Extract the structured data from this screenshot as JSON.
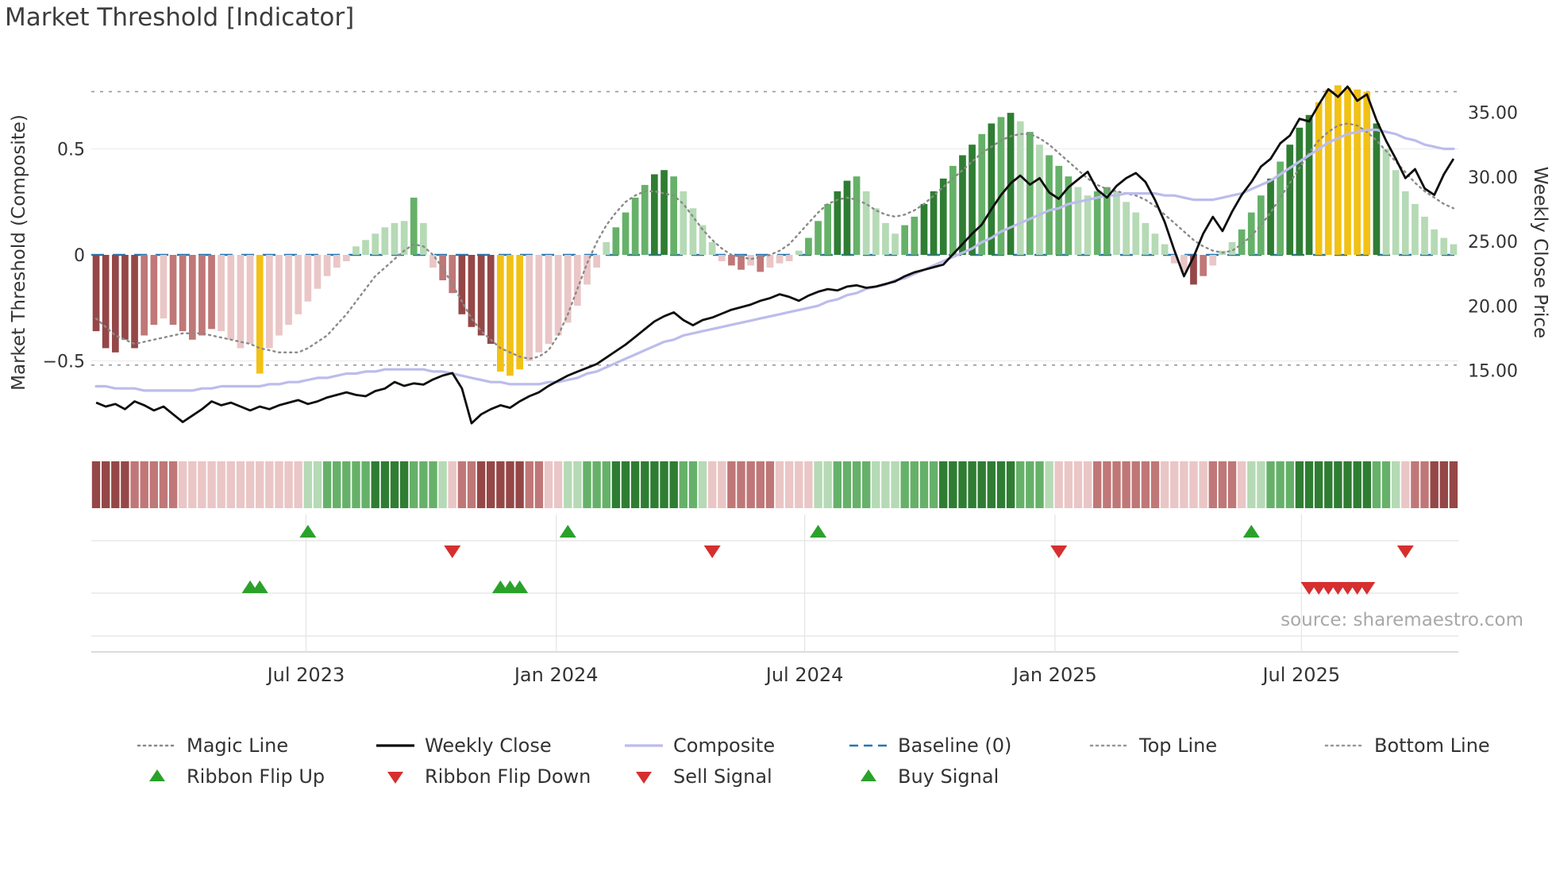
{
  "meta": {
    "title": "Market Threshold [Indicator]",
    "source": "source: sharemaestro.com"
  },
  "colors": {
    "bar_shades": {
      "r1": "#eac6c6",
      "r2": "#c07777",
      "r3": "#954747",
      "g1": "#b5dab5",
      "g2": "#66b169",
      "g3": "#2f7d33",
      "au": "#f2c115"
    },
    "magic": "#8a8a8a",
    "weekly_close": "#0d0d0d",
    "composite": "#bcbcec",
    "baseline": "#2277b4",
    "ref_line": "#999999",
    "flip_up": "#2aa22a",
    "flip_down": "#d62f2f",
    "buy": "#2aa22a",
    "sell": "#d62f2f"
  },
  "chart_data": {
    "type": "combo",
    "title": "Market Threshold [Indicator]",
    "x_unit": "weekly",
    "n_points": 142,
    "legend_position": "bottom",
    "x_ticks": [
      {
        "pos": 21.8,
        "label": "Jul 2023"
      },
      {
        "pos": 47.8,
        "label": "Jan 2024"
      },
      {
        "pos": 73.6,
        "label": "Jul 2024"
      },
      {
        "pos": 99.6,
        "label": "Jan 2025"
      },
      {
        "pos": 125.2,
        "label": "Jul 2025"
      }
    ],
    "left_axis": {
      "label": "Market Threshold (Composite)",
      "range": [
        -0.9,
        0.9
      ],
      "ticks": [
        {
          "v": 0.5,
          "t": "0.5"
        },
        {
          "v": 0.0,
          "t": "0"
        },
        {
          "v": -0.5,
          "t": "−0.5"
        }
      ]
    },
    "right_axis": {
      "label": "Weekly Close Price",
      "range": [
        9.0,
        38.5
      ],
      "ticks": [
        {
          "v": 35,
          "t": "35.00"
        },
        {
          "v": 30,
          "t": "30.00"
        },
        {
          "v": 25,
          "t": "25.00"
        },
        {
          "v": 20,
          "t": "20.00"
        },
        {
          "v": 15,
          "t": "15.00"
        }
      ]
    },
    "reference_lines": {
      "baseline": {
        "value": 0,
        "label": "Baseline (0)"
      },
      "top_line": {
        "value": 0.77,
        "label": "Top Line"
      },
      "bottom_line": {
        "value": -0.52,
        "label": "Bottom Line"
      }
    },
    "bars": {
      "name": "Market Threshold histogram",
      "values": [
        -0.36,
        -0.44,
        -0.46,
        -0.4,
        -0.44,
        -0.38,
        -0.33,
        -0.3,
        -0.33,
        -0.36,
        -0.4,
        -0.38,
        -0.35,
        -0.36,
        -0.4,
        -0.44,
        -0.42,
        -0.56,
        -0.44,
        -0.38,
        -0.33,
        -0.28,
        -0.22,
        -0.16,
        -0.1,
        -0.06,
        -0.03,
        0.04,
        0.07,
        0.1,
        0.13,
        0.15,
        0.16,
        0.27,
        0.15,
        -0.06,
        -0.12,
        -0.18,
        -0.28,
        -0.34,
        -0.38,
        -0.42,
        -0.55,
        -0.57,
        -0.54,
        -0.5,
        -0.46,
        -0.42,
        -0.38,
        -0.32,
        -0.24,
        -0.14,
        -0.06,
        0.06,
        0.13,
        0.2,
        0.27,
        0.33,
        0.38,
        0.4,
        0.37,
        0.3,
        0.22,
        0.14,
        0.06,
        -0.03,
        -0.05,
        -0.07,
        -0.05,
        -0.08,
        -0.06,
        -0.04,
        -0.03,
        0.02,
        0.08,
        0.16,
        0.24,
        0.3,
        0.35,
        0.37,
        0.3,
        0.22,
        0.15,
        0.1,
        0.14,
        0.18,
        0.24,
        0.3,
        0.36,
        0.42,
        0.47,
        0.52,
        0.57,
        0.62,
        0.65,
        0.67,
        0.63,
        0.58,
        0.52,
        0.47,
        0.42,
        0.37,
        0.32,
        0.28,
        0.3,
        0.32,
        0.3,
        0.25,
        0.2,
        0.15,
        0.1,
        0.05,
        -0.04,
        -0.08,
        -0.14,
        -0.1,
        -0.05,
        0.02,
        0.06,
        0.12,
        0.2,
        0.28,
        0.36,
        0.44,
        0.52,
        0.6,
        0.66,
        0.72,
        0.78,
        0.8,
        0.79,
        0.78,
        0.77,
        0.62,
        0.5,
        0.4,
        0.3,
        0.24,
        0.18,
        0.12,
        0.08,
        0.05
      ],
      "shades": [
        "r3",
        "r3",
        "r3",
        "r3",
        "r3",
        "r2",
        "r2",
        "r1",
        "r2",
        "r2",
        "r2",
        "r2",
        "r2",
        "r1",
        "r1",
        "r1",
        "r1",
        "au",
        "r1",
        "r1",
        "r1",
        "r1",
        "r1",
        "r1",
        "r1",
        "r1",
        "r1",
        "g1",
        "g1",
        "g1",
        "g1",
        "g1",
        "g1",
        "g2",
        "g1",
        "r1",
        "r2",
        "r2",
        "r3",
        "r3",
        "r3",
        "r3",
        "au",
        "au",
        "au",
        "r1",
        "r1",
        "r1",
        "r1",
        "r1",
        "r1",
        "r1",
        "r1",
        "g1",
        "g2",
        "g2",
        "g2",
        "g2",
        "g3",
        "g3",
        "g2",
        "g1",
        "g1",
        "g1",
        "g1",
        "r1",
        "r2",
        "r2",
        "r1",
        "r2",
        "r1",
        "r1",
        "r1",
        "g1",
        "g2",
        "g2",
        "g2",
        "g3",
        "g3",
        "g2",
        "g1",
        "g1",
        "g1",
        "g1",
        "g2",
        "g2",
        "g3",
        "g3",
        "g3",
        "g2",
        "g3",
        "g3",
        "g2",
        "g3",
        "g2",
        "g3",
        "g1",
        "g2",
        "g1",
        "g2",
        "g2",
        "g2",
        "g1",
        "g1",
        "g2",
        "g2",
        "g1",
        "g1",
        "g1",
        "g1",
        "g1",
        "g1",
        "r1",
        "r1",
        "r3",
        "r2",
        "r1",
        "g1",
        "g1",
        "g2",
        "g2",
        "g2",
        "g3",
        "g2",
        "g3",
        "g3",
        "g3",
        "au",
        "au",
        "au",
        "au",
        "au",
        "au",
        "g3",
        "g1",
        "g1",
        "g1",
        "g1",
        "g1",
        "g1",
        "g1",
        "g1"
      ]
    },
    "series": {
      "magic_line": {
        "name": "Magic Line",
        "axis": "left",
        "style": "dotted",
        "values": [
          -0.3,
          -0.34,
          -0.38,
          -0.4,
          -0.42,
          -0.41,
          -0.4,
          -0.39,
          -0.38,
          -0.37,
          -0.37,
          -0.37,
          -0.38,
          -0.39,
          -0.4,
          -0.41,
          -0.42,
          -0.44,
          -0.45,
          -0.46,
          -0.46,
          -0.46,
          -0.44,
          -0.41,
          -0.38,
          -0.33,
          -0.28,
          -0.22,
          -0.16,
          -0.1,
          -0.06,
          -0.02,
          0.02,
          0.05,
          0.04,
          0.0,
          -0.06,
          -0.14,
          -0.22,
          -0.3,
          -0.36,
          -0.4,
          -0.44,
          -0.46,
          -0.48,
          -0.49,
          -0.48,
          -0.45,
          -0.38,
          -0.28,
          -0.16,
          -0.04,
          0.06,
          0.14,
          0.2,
          0.25,
          0.28,
          0.3,
          0.3,
          0.29,
          0.28,
          0.24,
          0.18,
          0.12,
          0.07,
          0.03,
          0.0,
          -0.01,
          -0.02,
          -0.01,
          0.0,
          0.02,
          0.05,
          0.1,
          0.15,
          0.2,
          0.24,
          0.26,
          0.27,
          0.26,
          0.24,
          0.21,
          0.19,
          0.18,
          0.19,
          0.21,
          0.24,
          0.28,
          0.32,
          0.36,
          0.4,
          0.44,
          0.48,
          0.51,
          0.54,
          0.56,
          0.57,
          0.57,
          0.55,
          0.52,
          0.48,
          0.44,
          0.4,
          0.36,
          0.33,
          0.31,
          0.3,
          0.29,
          0.28,
          0.26,
          0.23,
          0.19,
          0.15,
          0.11,
          0.07,
          0.04,
          0.02,
          0.01,
          0.02,
          0.05,
          0.09,
          0.14,
          0.2,
          0.27,
          0.34,
          0.41,
          0.48,
          0.54,
          0.58,
          0.61,
          0.62,
          0.61,
          0.58,
          0.54,
          0.49,
          0.44,
          0.39,
          0.34,
          0.3,
          0.27,
          0.24,
          0.22
        ]
      },
      "composite": {
        "name": "Composite",
        "axis": "left",
        "style": "solid",
        "values": [
          -0.62,
          -0.62,
          -0.63,
          -0.63,
          -0.63,
          -0.64,
          -0.64,
          -0.64,
          -0.64,
          -0.64,
          -0.64,
          -0.63,
          -0.63,
          -0.62,
          -0.62,
          -0.62,
          -0.62,
          -0.62,
          -0.61,
          -0.61,
          -0.6,
          -0.6,
          -0.59,
          -0.58,
          -0.58,
          -0.57,
          -0.56,
          -0.56,
          -0.55,
          -0.55,
          -0.54,
          -0.54,
          -0.54,
          -0.54,
          -0.54,
          -0.55,
          -0.55,
          -0.56,
          -0.57,
          -0.58,
          -0.59,
          -0.6,
          -0.6,
          -0.61,
          -0.61,
          -0.61,
          -0.61,
          -0.6,
          -0.6,
          -0.59,
          -0.58,
          -0.56,
          -0.55,
          -0.53,
          -0.51,
          -0.49,
          -0.47,
          -0.45,
          -0.43,
          -0.41,
          -0.4,
          -0.38,
          -0.37,
          -0.36,
          -0.35,
          -0.34,
          -0.33,
          -0.32,
          -0.31,
          -0.3,
          -0.29,
          -0.28,
          -0.27,
          -0.26,
          -0.25,
          -0.24,
          -0.22,
          -0.21,
          -0.19,
          -0.18,
          -0.16,
          -0.15,
          -0.14,
          -0.12,
          -0.11,
          -0.09,
          -0.07,
          -0.05,
          -0.03,
          -0.01,
          0.01,
          0.03,
          0.06,
          0.08,
          0.11,
          0.13,
          0.15,
          0.17,
          0.19,
          0.21,
          0.22,
          0.24,
          0.25,
          0.26,
          0.27,
          0.28,
          0.28,
          0.29,
          0.29,
          0.29,
          0.29,
          0.28,
          0.28,
          0.27,
          0.26,
          0.26,
          0.26,
          0.27,
          0.28,
          0.29,
          0.31,
          0.33,
          0.35,
          0.38,
          0.41,
          0.44,
          0.47,
          0.5,
          0.53,
          0.55,
          0.57,
          0.58,
          0.59,
          0.59,
          0.58,
          0.57,
          0.55,
          0.54,
          0.52,
          0.51,
          0.5,
          0.5
        ]
      },
      "weekly_close": {
        "name": "Weekly Close",
        "axis": "right",
        "style": "solid",
        "values": [
          12.5,
          12.2,
          12.4,
          12.0,
          12.6,
          12.3,
          11.9,
          12.2,
          11.6,
          11.0,
          11.5,
          12.0,
          12.6,
          12.3,
          12.5,
          12.2,
          11.9,
          12.2,
          12.0,
          12.3,
          12.5,
          12.7,
          12.4,
          12.6,
          12.9,
          13.1,
          13.3,
          13.1,
          13.0,
          13.4,
          13.6,
          14.1,
          13.8,
          14.0,
          13.9,
          14.3,
          14.6,
          14.8,
          13.6,
          10.9,
          11.6,
          12.0,
          12.3,
          12.1,
          12.6,
          13.0,
          13.3,
          13.8,
          14.2,
          14.6,
          14.9,
          15.2,
          15.5,
          16.0,
          16.5,
          17.0,
          17.6,
          18.2,
          18.8,
          19.2,
          19.5,
          18.9,
          18.5,
          18.9,
          19.1,
          19.4,
          19.7,
          19.9,
          20.1,
          20.4,
          20.6,
          20.9,
          20.7,
          20.4,
          20.8,
          21.1,
          21.3,
          21.2,
          21.5,
          21.6,
          21.4,
          21.5,
          21.7,
          21.9,
          22.3,
          22.6,
          22.8,
          23.0,
          23.2,
          24.0,
          24.8,
          25.6,
          26.3,
          27.5,
          28.6,
          29.5,
          30.1,
          29.4,
          29.9,
          28.8,
          28.3,
          29.2,
          29.8,
          30.4,
          29.0,
          28.4,
          29.3,
          29.9,
          30.3,
          29.6,
          28.2,
          26.5,
          24.3,
          22.3,
          23.8,
          25.6,
          26.9,
          25.8,
          27.3,
          28.6,
          29.6,
          30.8,
          31.4,
          32.6,
          33.2,
          34.5,
          34.3,
          35.6,
          36.8,
          36.2,
          37.0,
          35.9,
          36.4,
          34.4,
          32.8,
          31.4,
          29.9,
          30.6,
          29.1,
          28.6,
          30.2,
          31.4
        ]
      }
    },
    "ribbon": {
      "name": "Trend ribbon",
      "shades": [
        "r3",
        "r3",
        "r3",
        "r3",
        "r2",
        "r2",
        "r2",
        "r2",
        "r2",
        "r1",
        "r1",
        "r1",
        "r1",
        "r1",
        "r1",
        "r1",
        "r1",
        "r1",
        "r1",
        "r1",
        "r1",
        "r1",
        "g1",
        "g1",
        "g2",
        "g2",
        "g2",
        "g2",
        "g2",
        "g3",
        "g3",
        "g3",
        "g3",
        "g2",
        "g2",
        "g2",
        "g1",
        "r1",
        "r2",
        "r2",
        "r3",
        "r3",
        "r3",
        "r3",
        "r3",
        "r2",
        "r2",
        "r1",
        "r1",
        "g1",
        "g1",
        "g2",
        "g2",
        "g2",
        "g3",
        "g3",
        "g3",
        "g3",
        "g3",
        "g3",
        "g3",
        "g2",
        "g2",
        "g1",
        "r1",
        "r1",
        "r2",
        "r2",
        "r2",
        "r2",
        "r2",
        "r1",
        "r1",
        "r1",
        "r1",
        "g1",
        "g1",
        "g2",
        "g2",
        "g2",
        "g2",
        "g1",
        "g1",
        "g1",
        "g2",
        "g2",
        "g2",
        "g2",
        "g3",
        "g3",
        "g3",
        "g3",
        "g3",
        "g3",
        "g3",
        "g3",
        "g2",
        "g2",
        "g2",
        "g1",
        "r1",
        "r1",
        "r1",
        "r1",
        "r2",
        "r2",
        "r2",
        "r2",
        "r2",
        "r2",
        "r2",
        "r1",
        "r1",
        "r1",
        "r1",
        "r1",
        "r2",
        "r2",
        "r2",
        "r1",
        "g1",
        "g1",
        "g2",
        "g2",
        "g2",
        "g3",
        "g3",
        "g3",
        "g3",
        "g3",
        "g3",
        "g3",
        "g3",
        "g2",
        "g2",
        "g1",
        "r1",
        "r2",
        "r2",
        "r3",
        "r3",
        "r3"
      ]
    },
    "signals": {
      "ribbon_flip_up": {
        "label": "Ribbon Flip Up",
        "weeks": [
          22,
          49,
          75,
          120
        ]
      },
      "ribbon_flip_down": {
        "label": "Ribbon Flip Down",
        "weeks": [
          37,
          64,
          100,
          136
        ]
      },
      "buy": {
        "label": "Buy Signal",
        "weeks": [
          16,
          17,
          42,
          43,
          44
        ]
      },
      "sell": {
        "label": "Sell Signal",
        "weeks": [
          126,
          127,
          128,
          129,
          130,
          131,
          132
        ]
      }
    }
  },
  "legend": {
    "rows": [
      [
        {
          "label": "Magic Line",
          "swatch": "dotted",
          "color": "magic"
        },
        {
          "label": "Weekly Close",
          "swatch": "solid",
          "color": "weekly_close"
        },
        {
          "label": "Composite",
          "swatch": "solid",
          "color": "composite"
        },
        {
          "label": "Baseline (0)",
          "swatch": "dashed",
          "color": "baseline"
        },
        {
          "label": "Top Line",
          "swatch": "dotted",
          "color": "ref_line"
        },
        {
          "label": "Bottom Line",
          "swatch": "dotted",
          "color": "ref_line"
        }
      ],
      [
        {
          "label": "Ribbon Flip Up",
          "swatch": "tri-up",
          "color": "flip_up"
        },
        {
          "label": "Ribbon Flip Down",
          "swatch": "tri-down",
          "color": "flip_down"
        },
        {
          "label": "Sell Signal",
          "swatch": "tri-down",
          "color": "sell"
        },
        {
          "label": "Buy Signal",
          "swatch": "tri-up",
          "color": "buy"
        }
      ]
    ]
  }
}
